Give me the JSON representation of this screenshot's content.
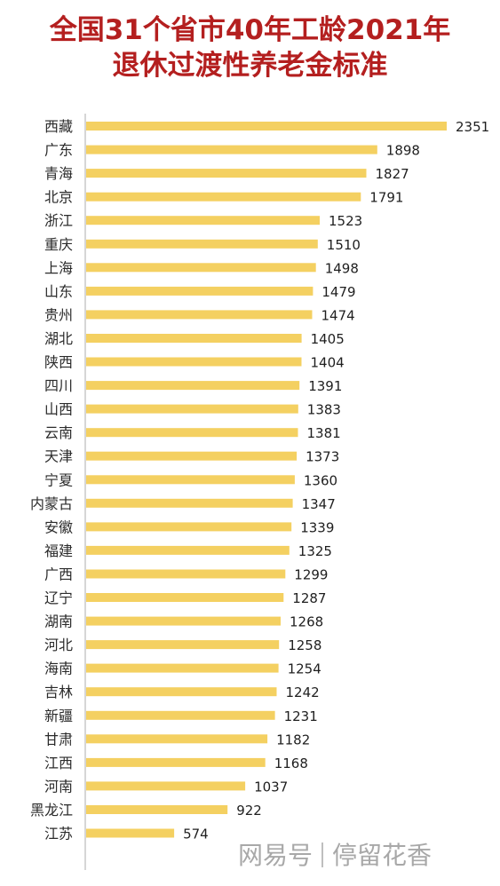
{
  "title": {
    "line1": "全国31个省市40年工龄2021年",
    "line2": "退休过渡性养老金标准"
  },
  "watermark": {
    "brand": "网易号",
    "author": "停留花香"
  },
  "chart_data": {
    "type": "bar",
    "orientation": "horizontal",
    "grid": false,
    "categories": [
      "西藏",
      "广东",
      "青海",
      "北京",
      "浙江",
      "重庆",
      "上海",
      "山东",
      "贵州",
      "湖北",
      "陕西",
      "四川",
      "山西",
      "云南",
      "天津",
      "宁夏",
      "内蒙古",
      "安徽",
      "福建",
      "广西",
      "辽宁",
      "湖南",
      "河北",
      "海南",
      "吉林",
      "新疆",
      "甘肃",
      "江西",
      "河南",
      "黑龙江",
      "江苏"
    ],
    "values": [
      2351,
      1898,
      1827,
      1791,
      1523,
      1510,
      1498,
      1479,
      1474,
      1405,
      1404,
      1391,
      1383,
      1381,
      1373,
      1360,
      1347,
      1339,
      1325,
      1299,
      1287,
      1268,
      1258,
      1254,
      1242,
      1231,
      1182,
      1168,
      1037,
      922,
      574
    ],
    "xlim": [
      0,
      2351
    ],
    "bar_color": "#f4d061",
    "axis_color": "#c8c8c8"
  }
}
